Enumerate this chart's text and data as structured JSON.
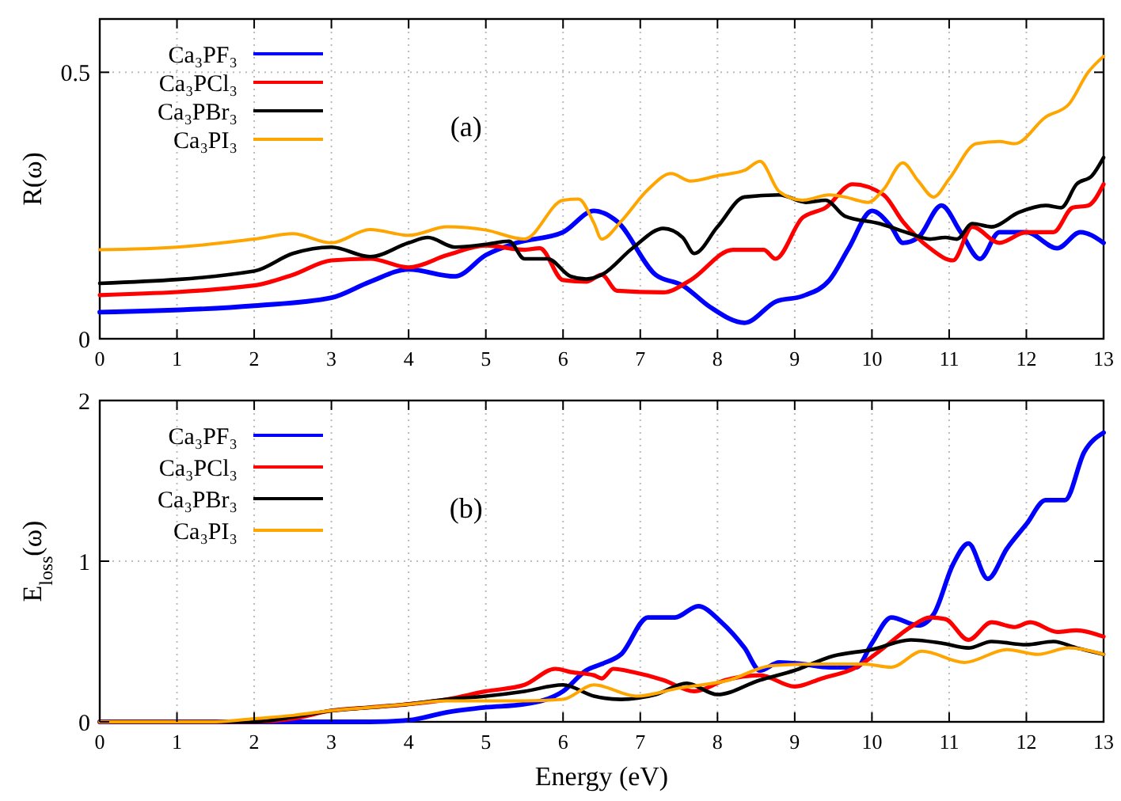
{
  "chart_data": [
    {
      "type": "line",
      "title": "(a)",
      "ylabel": "R(ω)",
      "xlim": [
        0,
        13
      ],
      "ylim": [
        0,
        0.6
      ],
      "xticks": [
        0,
        1,
        2,
        3,
        4,
        5,
        6,
        7,
        8,
        9,
        10,
        11,
        12,
        13
      ],
      "yticks": [
        0,
        0.5
      ],
      "grid": true,
      "legend": "top left",
      "line_style": "solid",
      "series": [
        {
          "name": "Ca₃PF₃",
          "color": "#0000ff",
          "x": [
            0,
            2,
            3,
            3.5,
            4,
            4.6,
            5,
            5.4,
            6,
            6.4,
            6.7,
            7.2,
            7.55,
            7.9,
            8.35,
            8.76,
            9.1,
            9.45,
            9.7,
            10,
            10.25,
            10.4,
            10.6,
            10.9,
            11.15,
            11.4,
            11.65,
            12,
            12.4,
            12.7,
            13
          ],
          "values": [
            0.05,
            0.062,
            0.077,
            0.107,
            0.13,
            0.117,
            0.157,
            0.18,
            0.2,
            0.24,
            0.22,
            0.12,
            0.1,
            0.06,
            0.03,
            0.07,
            0.08,
            0.11,
            0.17,
            0.24,
            0.21,
            0.18,
            0.19,
            0.25,
            0.2,
            0.15,
            0.2,
            0.2,
            0.17,
            0.2,
            0.18
          ]
        },
        {
          "name": "Ca₃PCl₃",
          "color": "#ff0000",
          "x": [
            0,
            2,
            2.5,
            3,
            3.5,
            4,
            4.5,
            5,
            5.5,
            5.7,
            6,
            6.3,
            6.5,
            6.7,
            7.3,
            7.65,
            8.2,
            8.6,
            8.75,
            9.1,
            9.4,
            9.75,
            10.15,
            10.4,
            10.75,
            11.05,
            11.3,
            11.65,
            12,
            12.35,
            12.6,
            12.8,
            13
          ],
          "values": [
            0.082,
            0.1,
            0.12,
            0.147,
            0.15,
            0.134,
            0.157,
            0.175,
            0.167,
            0.17,
            0.11,
            0.107,
            0.12,
            0.09,
            0.087,
            0.11,
            0.167,
            0.167,
            0.15,
            0.227,
            0.246,
            0.29,
            0.27,
            0.22,
            0.17,
            0.147,
            0.21,
            0.18,
            0.2,
            0.2,
            0.246,
            0.25,
            0.29
          ]
        },
        {
          "name": "Ca₃PBr₃",
          "color": "#000000",
          "x": [
            0,
            2,
            2.5,
            3,
            3.5,
            4,
            4.25,
            4.6,
            5,
            5.3,
            5.5,
            5.8,
            6.1,
            6.3,
            6.5,
            6.9,
            7.3,
            7.55,
            7.7,
            8,
            8.35,
            8.8,
            9.15,
            9.4,
            9.65,
            10.1,
            10.5,
            10.75,
            10.95,
            11.1,
            11.3,
            11.55,
            11.9,
            12.25,
            12.45,
            12.65,
            12.85,
            13
          ],
          "values": [
            0.104,
            0.127,
            0.16,
            0.172,
            0.154,
            0.18,
            0.19,
            0.172,
            0.177,
            0.183,
            0.15,
            0.15,
            0.117,
            0.112,
            0.12,
            0.17,
            0.207,
            0.19,
            0.16,
            0.21,
            0.266,
            0.27,
            0.256,
            0.26,
            0.23,
            0.216,
            0.197,
            0.187,
            0.19,
            0.187,
            0.216,
            0.21,
            0.237,
            0.25,
            0.246,
            0.29,
            0.306,
            0.34
          ]
        },
        {
          "name": "Ca₃PI₃",
          "color": "#ffa500",
          "x": [
            0,
            1,
            2,
            2.5,
            3,
            3.5,
            4,
            4.5,
            5,
            5.5,
            6,
            6.2,
            6.4,
            6.5,
            6.75,
            7.1,
            7.4,
            7.65,
            8,
            8.35,
            8.55,
            8.8,
            9.1,
            9.45,
            9.65,
            9.95,
            10.15,
            10.4,
            10.6,
            10.8,
            11,
            11.35,
            11.65,
            11.85,
            12.25,
            12.55,
            12.8,
            13
          ],
          "values": [
            0.167,
            0.172,
            0.187,
            0.197,
            0.18,
            0.205,
            0.194,
            0.21,
            0.204,
            0.187,
            0.26,
            0.262,
            0.217,
            0.187,
            0.22,
            0.28,
            0.31,
            0.296,
            0.306,
            0.316,
            0.333,
            0.276,
            0.26,
            0.27,
            0.266,
            0.256,
            0.28,
            0.33,
            0.296,
            0.266,
            0.3,
            0.366,
            0.37,
            0.366,
            0.416,
            0.44,
            0.5,
            0.53
          ]
        }
      ]
    },
    {
      "type": "line",
      "title": "(b)",
      "xlabel": "Energy (eV)",
      "ylabel": "E$_{loss}$(ω)",
      "xlim": [
        0,
        13
      ],
      "ylim": [
        0,
        2
      ],
      "xticks": [
        0,
        1,
        2,
        3,
        4,
        5,
        6,
        7,
        8,
        9,
        10,
        11,
        12,
        13
      ],
      "yticks": [
        0,
        1,
        2
      ],
      "grid": true,
      "legend": "top left",
      "line_style": "solid",
      "series": [
        {
          "name": "Ca₃PF₃",
          "color": "#0000ff",
          "x": [
            0,
            3.5,
            4,
            4.5,
            5,
            5.5,
            6,
            6.3,
            6.5,
            6.75,
            7.1,
            7.45,
            7.75,
            8.05,
            8.35,
            8.55,
            8.8,
            9.1,
            9.45,
            9.8,
            10,
            10.25,
            10.6,
            10.8,
            11.05,
            11.25,
            11.5,
            11.75,
            12,
            12.25,
            12.5,
            12.75,
            13
          ],
          "values": [
            0,
            0,
            0.01,
            0.06,
            0.09,
            0.11,
            0.19,
            0.32,
            0.36,
            0.42,
            0.65,
            0.65,
            0.72,
            0.62,
            0.46,
            0.32,
            0.37,
            0.36,
            0.34,
            0.34,
            0.49,
            0.65,
            0.6,
            0.67,
            0.98,
            1.11,
            0.89,
            1.08,
            1.23,
            1.38,
            1.38,
            1.68,
            1.8
          ]
        },
        {
          "name": "Ca₃PCl₃",
          "color": "#ff0000",
          "x": [
            0,
            2,
            2.5,
            3,
            3.5,
            4,
            4.5,
            5,
            5.5,
            5.9,
            6.1,
            6.4,
            6.5,
            6.65,
            6.9,
            7.3,
            7.7,
            8.1,
            8.55,
            9,
            9.35,
            9.8,
            10.15,
            10.5,
            10.75,
            10.95,
            11.25,
            11.55,
            11.85,
            12.05,
            12.4,
            12.65,
            13
          ],
          "values": [
            0,
            0,
            0.02,
            0.07,
            0.09,
            0.11,
            0.14,
            0.19,
            0.23,
            0.33,
            0.31,
            0.29,
            0.27,
            0.33,
            0.31,
            0.26,
            0.19,
            0.26,
            0.29,
            0.22,
            0.27,
            0.34,
            0.46,
            0.59,
            0.65,
            0.64,
            0.51,
            0.62,
            0.59,
            0.62,
            0.56,
            0.57,
            0.53
          ]
        },
        {
          "name": "Ca₃PBr₃",
          "color": "#000000",
          "x": [
            0,
            2,
            2.5,
            3,
            3.5,
            4,
            4.5,
            5,
            5.5,
            6,
            6.4,
            6.75,
            7.2,
            7.6,
            8,
            8.55,
            9,
            9.5,
            10,
            10.5,
            10.9,
            11.25,
            11.55,
            12,
            12.35,
            12.65,
            13
          ],
          "values": [
            0,
            0,
            0.03,
            0.07,
            0.09,
            0.11,
            0.14,
            0.16,
            0.19,
            0.23,
            0.16,
            0.14,
            0.17,
            0.24,
            0.17,
            0.26,
            0.32,
            0.41,
            0.45,
            0.51,
            0.49,
            0.46,
            0.5,
            0.48,
            0.5,
            0.46,
            0.42
          ]
        },
        {
          "name": "Ca₃PI₃",
          "color": "#ffa500",
          "x": [
            0,
            1.5,
            2,
            2.5,
            3,
            3.5,
            4,
            4.5,
            5,
            5.5,
            6,
            6.4,
            6.95,
            7.5,
            8.15,
            8.7,
            9.35,
            9.9,
            10.25,
            10.65,
            11.2,
            11.75,
            12.15,
            12.55,
            13
          ],
          "values": [
            0,
            0,
            0.02,
            0.04,
            0.07,
            0.09,
            0.11,
            0.13,
            0.13,
            0.13,
            0.14,
            0.23,
            0.16,
            0.21,
            0.26,
            0.35,
            0.36,
            0.36,
            0.34,
            0.44,
            0.37,
            0.45,
            0.42,
            0.46,
            0.42
          ]
        }
      ]
    }
  ]
}
